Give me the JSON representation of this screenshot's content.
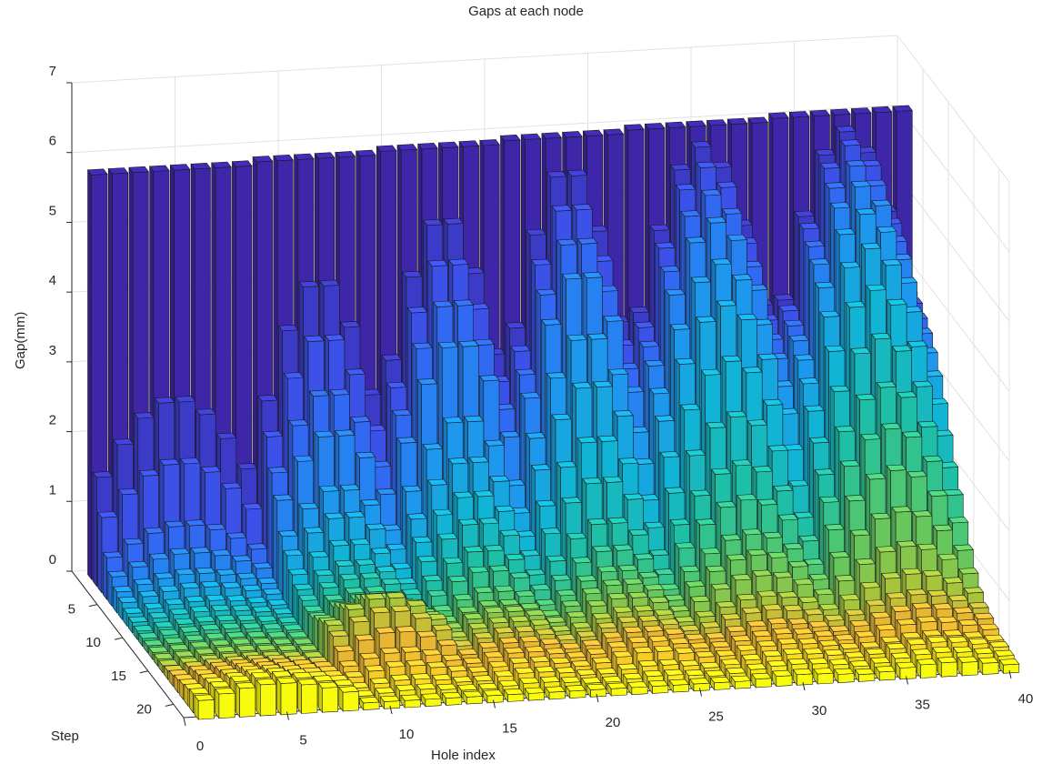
{
  "chart_data": {
    "type": "bar3",
    "title": "Gaps at each node",
    "xlabel": "Hole index",
    "ylabel": "Step",
    "zlabel": "Gap(mm)",
    "xlim": [
      0,
      40
    ],
    "ylim": [
      0,
      22
    ],
    "zlim": [
      0,
      7
    ],
    "x_ticks": [
      0,
      5,
      10,
      15,
      20,
      25,
      30,
      35,
      40
    ],
    "y_ticks": [
      5,
      10,
      15,
      20
    ],
    "z_ticks": [
      0,
      1,
      2,
      3,
      4,
      5,
      6,
      7
    ],
    "grid": true,
    "colormap": "parula (by step)",
    "colors": [
      "#3e26a8",
      "#3a58f3",
      "#1f93f0",
      "#11b4d4",
      "#21c0a0",
      "#5cc863",
      "#a8c43c",
      "#f1b533",
      "#f9d424",
      "#f9fb0e"
    ],
    "holes": 40,
    "steps": 22,
    "step1_gap": 5.85,
    "hole_groups": [
      {
        "holes": [
          1,
          8
        ],
        "peak_by_step": [
          5.8,
          2.6,
          1.8,
          1.0,
          0.7,
          0.5,
          0.4,
          0.3,
          0.25,
          0.2,
          0.18,
          0.15,
          0.15,
          0.15,
          0.15,
          0.2,
          0.25,
          0.3,
          0.35,
          0.4,
          0.45,
          0.45
        ]
      },
      {
        "holes": [
          9,
          14
        ],
        "peak_by_step": [
          5.85,
          4.2,
          3.5,
          2.8,
          2.3,
          1.6,
          1.3,
          1.0,
          0.8,
          0.7,
          0.6,
          0.6,
          0.7,
          0.8,
          0.9,
          0.8,
          0.6,
          0.4,
          0.3,
          0.2,
          0.15,
          0.1
        ]
      },
      {
        "holes": [
          15,
          20
        ],
        "peak_by_step": [
          5.9,
          5.0,
          4.5,
          4.0,
          3.5,
          2.5,
          2.0,
          1.6,
          1.3,
          1.0,
          0.8,
          0.6,
          0.5,
          0.5,
          0.45,
          0.4,
          0.35,
          0.3,
          0.25,
          0.2,
          0.15,
          0.1
        ]
      },
      {
        "holes": [
          21,
          26
        ],
        "peak_by_step": [
          5.95,
          5.6,
          5.2,
          4.8,
          4.4,
          3.6,
          3.0,
          2.3,
          1.8,
          1.3,
          1.0,
          0.8,
          0.7,
          0.6,
          0.5,
          0.45,
          0.4,
          0.35,
          0.3,
          0.2,
          0.15,
          0.1
        ]
      },
      {
        "holes": [
          27,
          33
        ],
        "peak_by_step": [
          6.0,
          5.8,
          5.6,
          5.3,
          5.0,
          4.5,
          4.0,
          3.3,
          2.6,
          2.0,
          1.6,
          1.2,
          1.0,
          0.8,
          0.6,
          0.5,
          0.4,
          0.35,
          0.3,
          0.25,
          0.2,
          0.15
        ]
      },
      {
        "holes": [
          34,
          40
        ],
        "peak_by_step": [
          6.05,
          5.9,
          5.8,
          5.6,
          5.4,
          5.1,
          4.7,
          4.2,
          3.6,
          3.0,
          2.5,
          2.0,
          1.5,
          1.1,
          0.8,
          0.6,
          0.5,
          0.4,
          0.3,
          0.3,
          0.25,
          0.2
        ]
      }
    ]
  }
}
